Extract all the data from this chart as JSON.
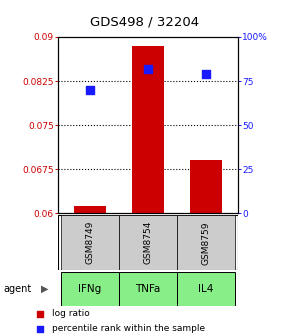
{
  "title": "GDS498 / 32204",
  "samples": [
    "GSM8749",
    "GSM8754",
    "GSM8759"
  ],
  "agents": [
    "IFNg",
    "TNFa",
    "IL4"
  ],
  "log_ratio": [
    0.0612,
    0.0885,
    0.069
  ],
  "percentile_rank": [
    70,
    82,
    79
  ],
  "ylim_left": [
    0.06,
    0.09
  ],
  "ylim_right": [
    0,
    100
  ],
  "yticks_left": [
    0.06,
    0.0675,
    0.075,
    0.0825,
    0.09
  ],
  "yticks_right": [
    0,
    25,
    50,
    75,
    100
  ],
  "ytick_labels_left": [
    "0.06",
    "0.0675",
    "0.075",
    "0.0825",
    "0.09"
  ],
  "ytick_labels_right": [
    "0",
    "25",
    "50",
    "75",
    "100%"
  ],
  "bar_color": "#cc0000",
  "dot_color": "#1a1aff",
  "sample_box_color": "#cccccc",
  "agent_box_color": "#88ee88",
  "bar_width": 0.55,
  "dot_size": 35,
  "left_tick_color": "#cc0000",
  "right_tick_color": "#1a1aff",
  "baseline": 0.06
}
